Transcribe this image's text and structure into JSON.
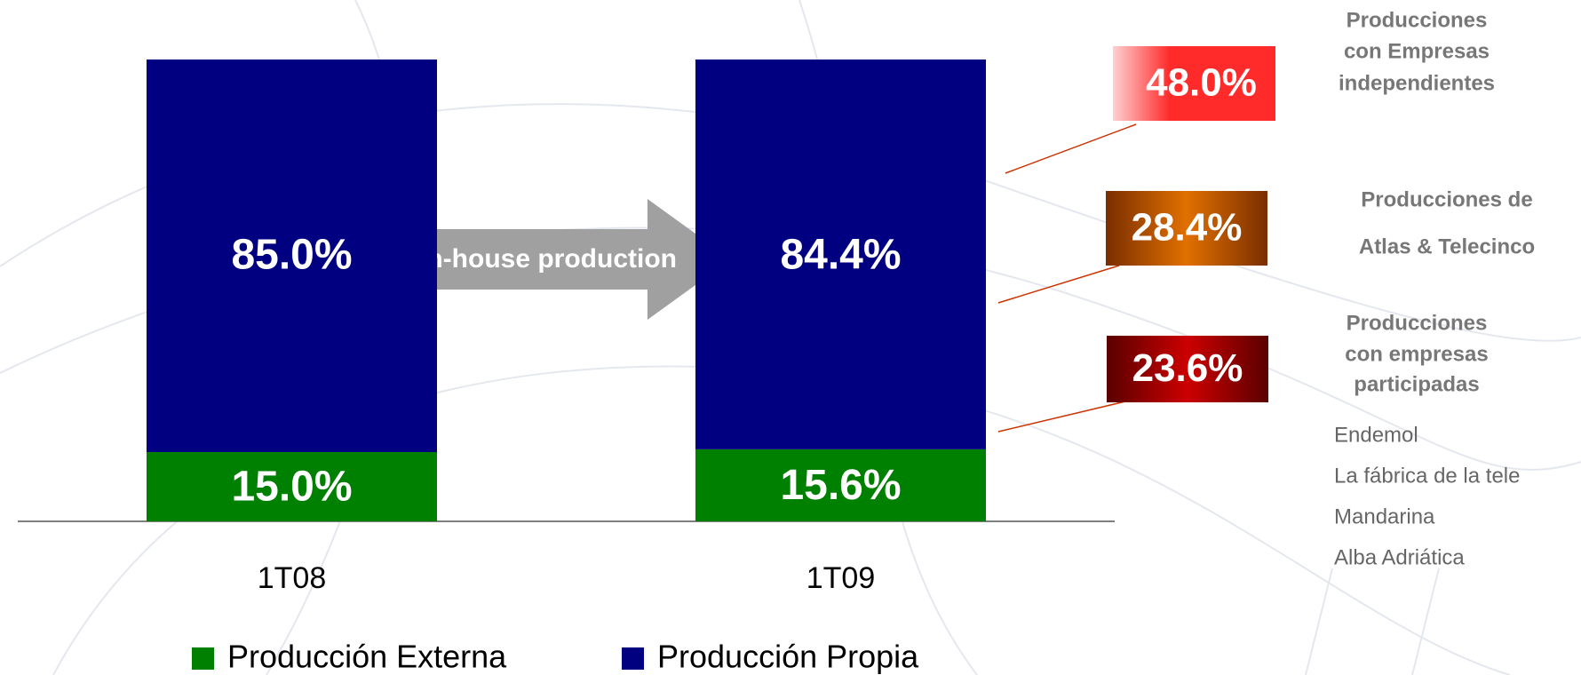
{
  "chart_data": {
    "type": "stacked_bar",
    "categories": [
      "1T08",
      "1T09"
    ],
    "series": [
      {
        "name": "Producción Externa",
        "color": "#008000",
        "values": [
          15.0,
          15.6
        ],
        "value_labels": [
          "15.0%",
          "15.6%"
        ]
      },
      {
        "name": "Producción Propia",
        "color": "#000080",
        "values": [
          85.0,
          84.4
        ],
        "value_labels": [
          "85.0%",
          "84.4%"
        ]
      }
    ],
    "annotation": "In-house production",
    "breakdown": [
      {
        "label_lines": [
          "Producciones",
          "con Empresas",
          "independientes"
        ],
        "value": 48.0,
        "value_label": "48.0%",
        "color": "#ff2a2a"
      },
      {
        "label_lines": [
          "Producciones de",
          "Atlas & Telecinco"
        ],
        "value": 28.4,
        "value_label": "28.4%",
        "color": "#c25a00"
      },
      {
        "label_lines": [
          "Producciones",
          "con empresas",
          "participadas"
        ],
        "value": 23.6,
        "value_label": "23.6%",
        "color": "#a00000",
        "companies": [
          "Endemol",
          "La fábrica de la tele",
          "Mandarina",
          "Alba Adriática"
        ]
      }
    ]
  }
}
